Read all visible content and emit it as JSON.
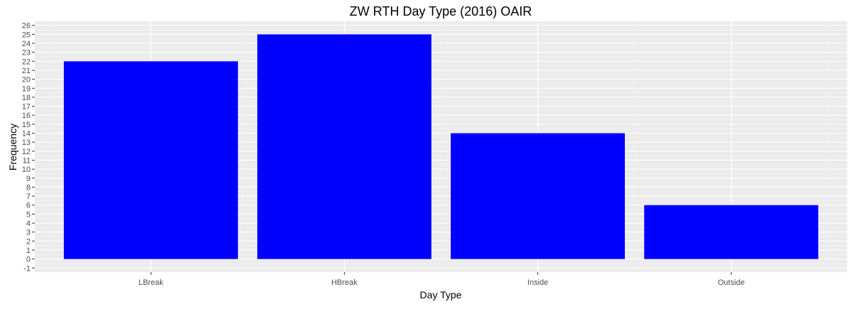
{
  "chart_data": {
    "type": "bar",
    "title": "ZW RTH Day Type (2016) OAIR",
    "xlabel": "Day Type",
    "ylabel": "Frequency",
    "categories": [
      "LBreak",
      "HBreak",
      "Inside",
      "Outside"
    ],
    "values": [
      22,
      25,
      14,
      6
    ],
    "ylim": [
      -1,
      26
    ],
    "yticks": [
      "-1",
      "0",
      "1",
      "2",
      "3",
      "4",
      "5",
      "6",
      "7",
      "8",
      "9",
      "10",
      "11",
      "12",
      "13",
      "14",
      "15",
      "16",
      "17",
      "18",
      "19",
      "20",
      "21",
      "22",
      "23",
      "24",
      "25",
      "26"
    ],
    "grid": true,
    "legend": "none",
    "colors": {
      "bar": "#0000ff",
      "panel_background": "#ebebeb",
      "grid_major": "#ffffff",
      "grid_minor": "#f5f5f5"
    }
  }
}
